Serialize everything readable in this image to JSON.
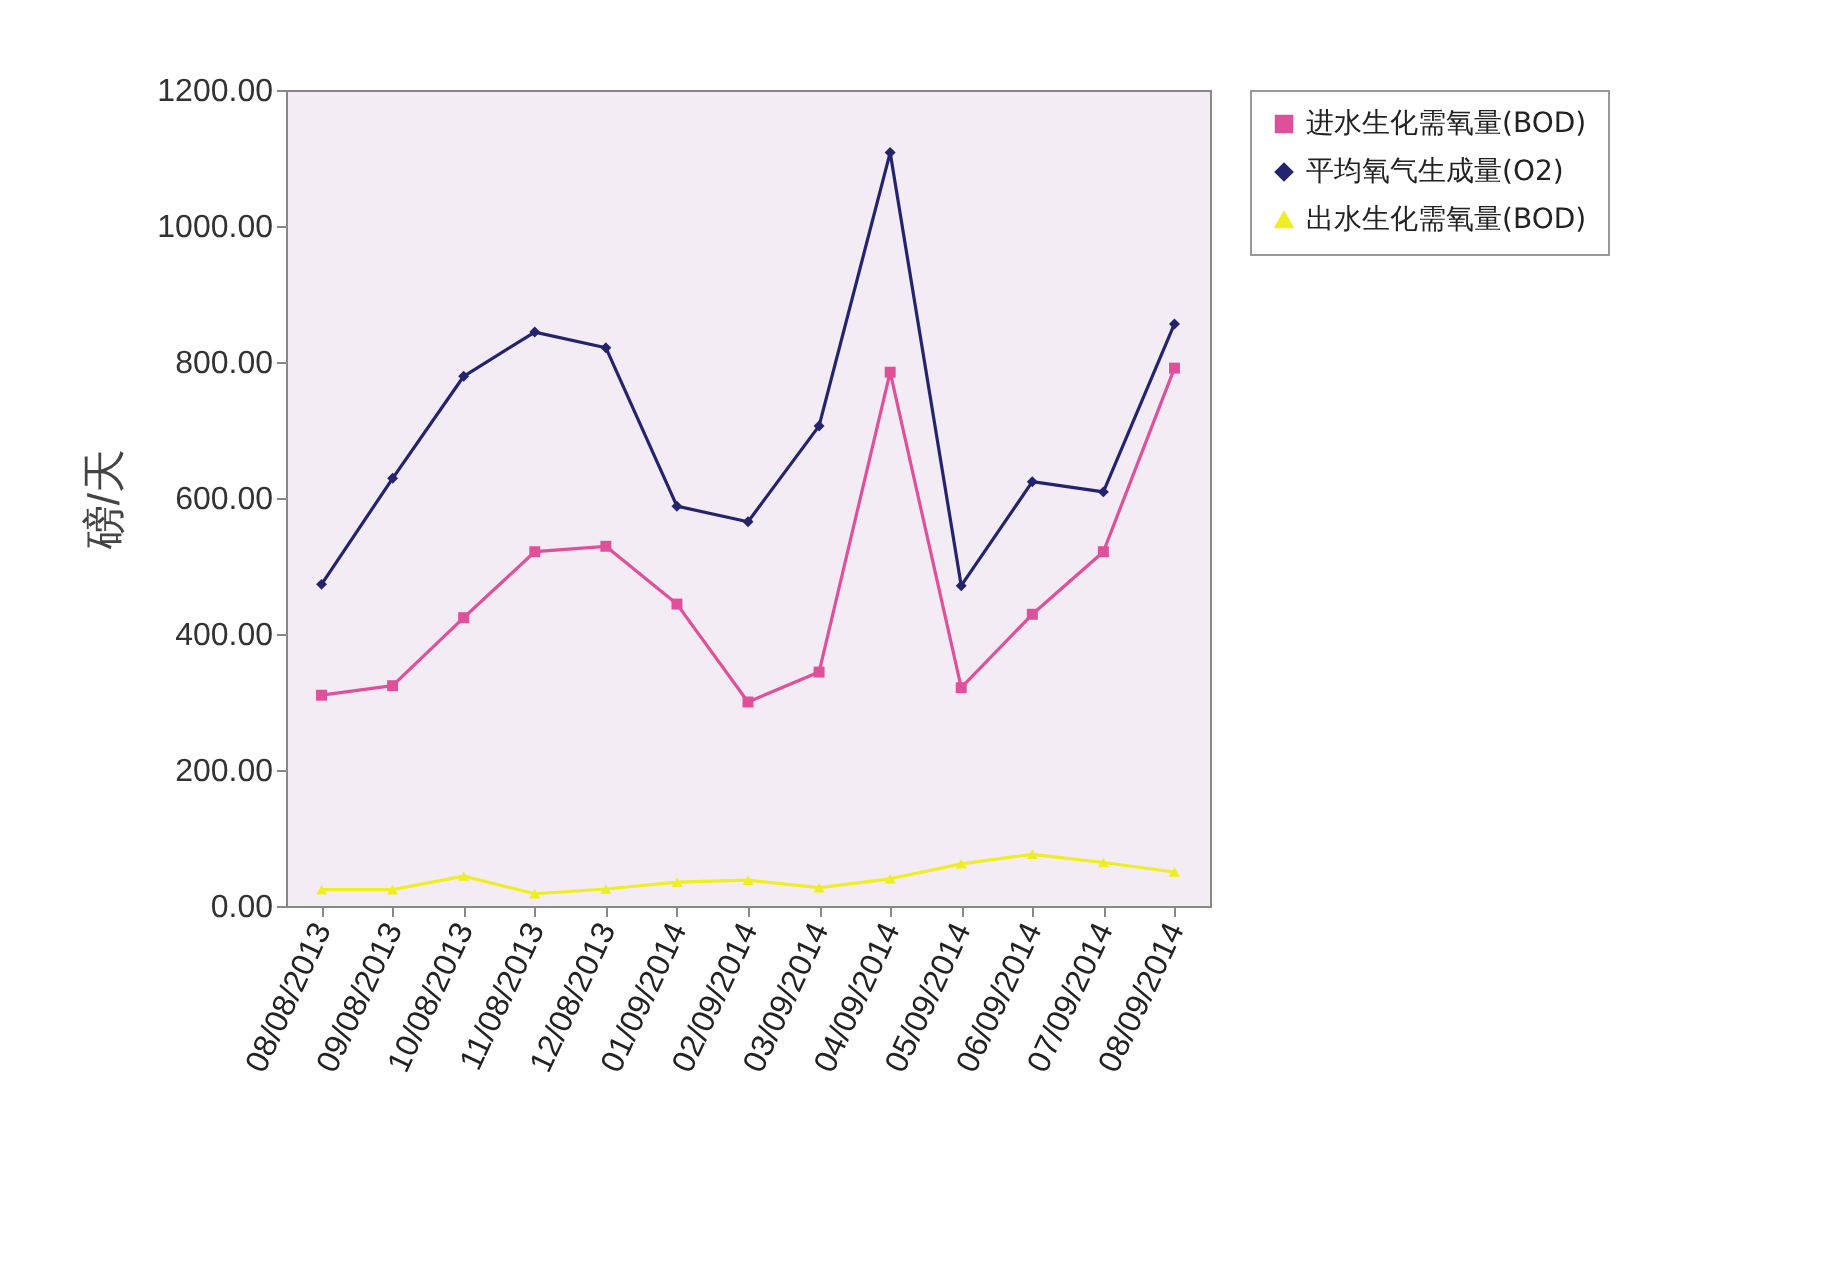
{
  "chart_data": {
    "type": "line",
    "ylabel": "磅/天",
    "categories": [
      "08/08/2013",
      "09/08/2013",
      "10/08/2013",
      "11/08/2013",
      "12/08/2013",
      "01/09/2014",
      "02/09/2014",
      "03/09/2014",
      "04/09/2014",
      "05/09/2014",
      "06/09/2014",
      "07/09/2014",
      "08/09/2014"
    ],
    "series": [
      {
        "name": "进水生化需氧量(BOD)",
        "color": "#e0509a",
        "marker": "square",
        "values": [
          310,
          324,
          424,
          521,
          529,
          444,
          300,
          344,
          785,
          321,
          429,
          521,
          791
        ]
      },
      {
        "name": "平均氧气生成量(O2)",
        "color": "#23236e",
        "marker": "diamond",
        "values": [
          473,
          629,
          779,
          844,
          821,
          588,
          565,
          706,
          1108,
          471,
          624,
          609,
          856
        ]
      },
      {
        "name": "出水生化需氧量(BOD)",
        "color": "#eeee22",
        "marker": "triangle",
        "values": [
          24,
          24,
          44,
          18,
          25,
          35,
          38,
          27,
          40,
          62,
          76,
          64,
          50
        ]
      }
    ],
    "ylim": [
      0,
      1200
    ],
    "yticks": [
      {
        "value": 0,
        "label": "0.00"
      },
      {
        "value": 200,
        "label": "200.00"
      },
      {
        "value": 400,
        "label": "400.00"
      },
      {
        "value": 600,
        "label": "600.00"
      },
      {
        "value": 800,
        "label": "800.00"
      },
      {
        "value": 1000,
        "label": "1000.00"
      },
      {
        "value": 1200,
        "label": "1200.00"
      }
    ],
    "grid": false,
    "legend": "right",
    "line_style": "solid"
  }
}
